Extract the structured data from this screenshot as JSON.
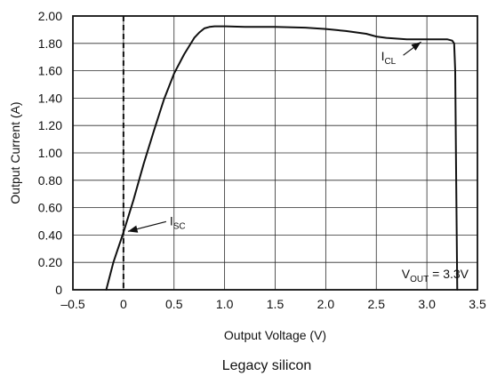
{
  "chart_data": {
    "type": "line",
    "xlabel": "Output Voltage (V)",
    "ylabel": "Output Current (A)",
    "caption": "Legacy silicon",
    "xlim": [
      -0.5,
      3.5
    ],
    "ylim": [
      0,
      2.0
    ],
    "x_ticks": [
      -0.5,
      0,
      0.5,
      1.0,
      1.5,
      2.0,
      2.5,
      3.0,
      3.5
    ],
    "x_tick_labels": [
      "–0.5",
      "0",
      "0.5",
      "1.0",
      "1.5",
      "2.0",
      "2.5",
      "3.0",
      "3.5"
    ],
    "y_ticks": [
      0,
      0.2,
      0.4,
      0.6,
      0.8,
      1.0,
      1.2,
      1.4,
      1.6,
      1.8,
      2.0
    ],
    "y_tick_labels": [
      "0",
      "0.20",
      "0.40",
      "0.60",
      "0.80",
      "1.00",
      "1.20",
      "1.40",
      "1.60",
      "1.80",
      "2.00"
    ],
    "grid": true,
    "reference_line": {
      "x": 0,
      "style": "dashed"
    },
    "series": [
      {
        "x": [
          -0.17,
          -0.1,
          0,
          0.1,
          0.2,
          0.3,
          0.4,
          0.5,
          0.6,
          0.7,
          0.75,
          0.8,
          0.85,
          0.9,
          1.0,
          1.2,
          1.5,
          1.8,
          2.0,
          2.2,
          2.4,
          2.5,
          2.6,
          2.8,
          3.0,
          3.1,
          3.2,
          3.25,
          3.27,
          3.28,
          3.29,
          3.3
        ],
        "y": [
          0,
          0.2,
          0.42,
          0.66,
          0.92,
          1.16,
          1.39,
          1.58,
          1.72,
          1.84,
          1.88,
          1.91,
          1.92,
          1.925,
          1.925,
          1.92,
          1.92,
          1.915,
          1.905,
          1.89,
          1.87,
          1.85,
          1.84,
          1.83,
          1.83,
          1.83,
          1.83,
          1.82,
          1.8,
          1.6,
          0.8,
          0
        ]
      }
    ],
    "annotations": [
      {
        "main": "I",
        "sub": "SC",
        "x": 0.0,
        "y": 0.42
      },
      {
        "main": "I",
        "sub": "CL",
        "x": 2.96,
        "y": 1.83
      },
      {
        "main": "V",
        "sub": "OUT",
        "suffix": " = 3.3V",
        "position": "bottom-right"
      }
    ]
  }
}
